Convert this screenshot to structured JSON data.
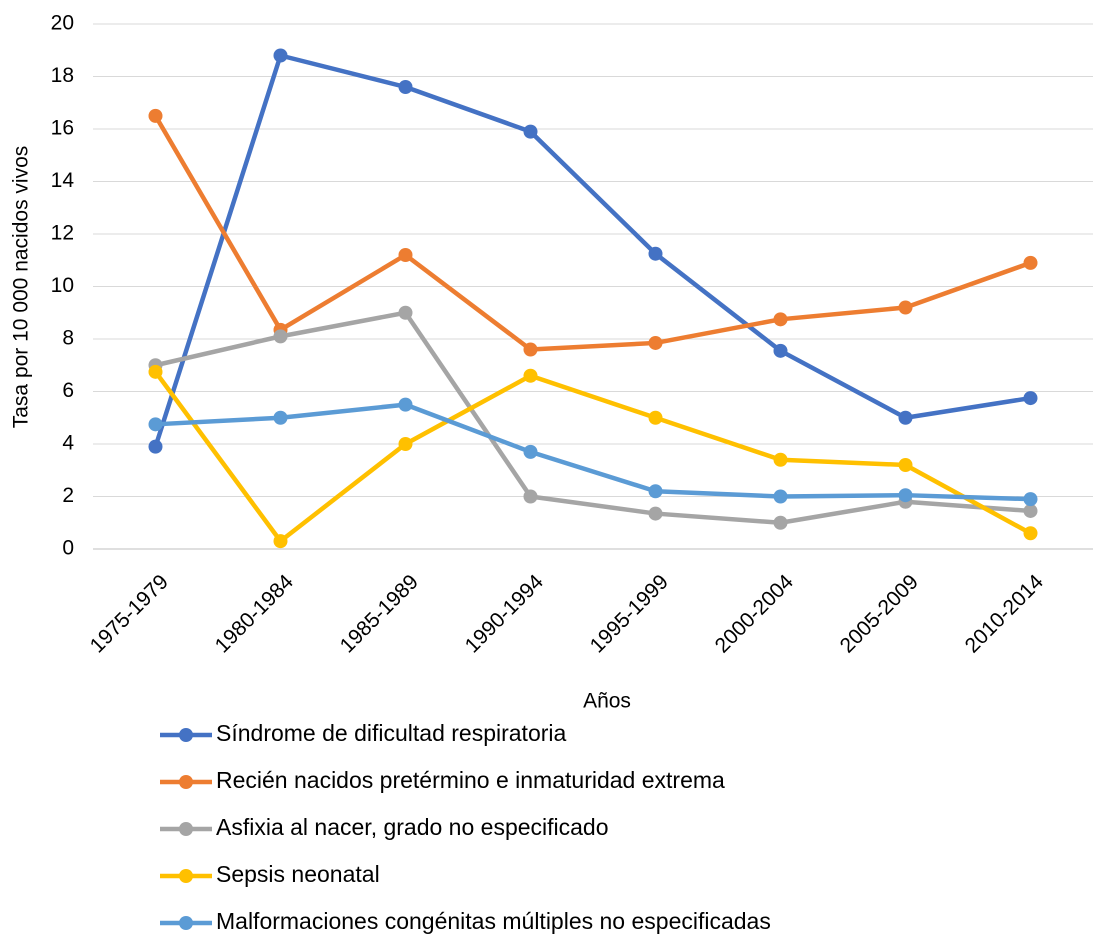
{
  "chart_data": {
    "type": "line",
    "x_label": "Años",
    "y_label": "Tasa por 10 000 nacidos vivos",
    "categories": [
      "1975-1979",
      "1980-1984",
      "1985-1989",
      "1990-1994",
      "1995-1999",
      "2000-2004",
      "2005-2009",
      "2010-2014"
    ],
    "series": [
      {
        "name": "Síndrome de dificultad respiratoria",
        "color": "#4472c4",
        "values": [
          3.9,
          18.8,
          17.6,
          15.9,
          11.25,
          7.55,
          5.0,
          5.75
        ]
      },
      {
        "name": "Recién nacidos pretérmino e inmaturidad extrema",
        "color": "#ed7d31",
        "values": [
          16.5,
          8.35,
          11.2,
          7.6,
          7.85,
          8.75,
          9.2,
          10.9
        ]
      },
      {
        "name": "Asfixia al nacer, grado no especificado",
        "color": "#a5a5a5",
        "values": [
          7.0,
          8.1,
          9.0,
          2.0,
          1.35,
          1.0,
          1.8,
          1.45
        ]
      },
      {
        "name": "Sepsis neonatal",
        "color": "#ffc000",
        "values": [
          6.75,
          0.3,
          4.0,
          6.6,
          5.0,
          3.4,
          3.2,
          0.6
        ]
      },
      {
        "name": "Malformaciones congénitas múltiples no especificadas",
        "color": "#5b9bd5",
        "values": [
          4.75,
          5.0,
          5.5,
          3.7,
          2.2,
          2.0,
          2.05,
          1.9
        ]
      }
    ],
    "ylim": [
      0,
      20
    ],
    "yticks": [
      0,
      2,
      4,
      6,
      8,
      10,
      12,
      14,
      16,
      18,
      20
    ],
    "grid": true,
    "legend": "bottom"
  }
}
